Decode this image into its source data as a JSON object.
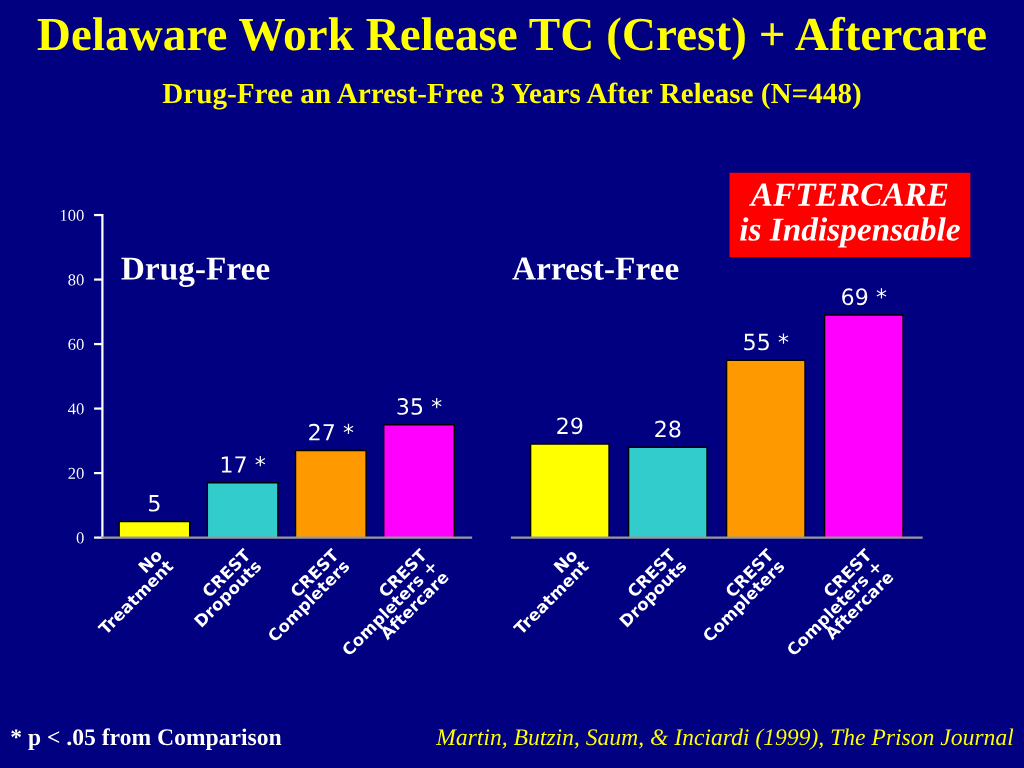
{
  "chart_data": [
    {
      "type": "bar",
      "title": "Delaware Work Release TC (Crest) + Aftercare",
      "subtitle": "Drug-Free an Arrest-Free 3 Years After Release (N=448)",
      "categories": [
        "No Treatment",
        "CREST Dropouts",
        "CREST Completers",
        "CREST Completers + Aftercare"
      ],
      "values": [
        5,
        17,
        27,
        35
      ],
      "colors": [
        "#ffff00",
        "#33cccc",
        "#ff9900",
        "#ff00ff"
      ],
      "value_labels": [
        "5",
        "17 *",
        "27 *",
        "35 *"
      ],
      "ylim": [
        0,
        100
      ],
      "yticks": [
        0,
        20,
        40,
        60,
        80,
        100
      ],
      "grid": false,
      "legend": false,
      "annotations": [
        "Drug-Free",
        "* p < .05 from Comparison",
        "Martin, Butzin, Saum, & Inciardi (1999), The Prison Journal"
      ]
    },
    {
      "type": "bar",
      "categories": [
        "No Treatment",
        "CREST Dropouts",
        "CREST Completers",
        "CREST Completers + Aftercare"
      ],
      "values": [
        29,
        28,
        55,
        69
      ],
      "colors": [
        "#ffff00",
        "#33cccc",
        "#ff9900",
        "#ff00ff"
      ],
      "value_labels": [
        "29",
        "28",
        "55 *",
        "69 *"
      ],
      "ylim": [
        0,
        100
      ],
      "yticks": [
        0,
        20,
        40,
        60,
        80,
        100
      ],
      "tick_labels": "x",
      "grid": false,
      "legend": false,
      "annotations": [
        "Arrest-Free",
        "AFTERCARE\nis Indispensable"
      ]
    }
  ]
}
